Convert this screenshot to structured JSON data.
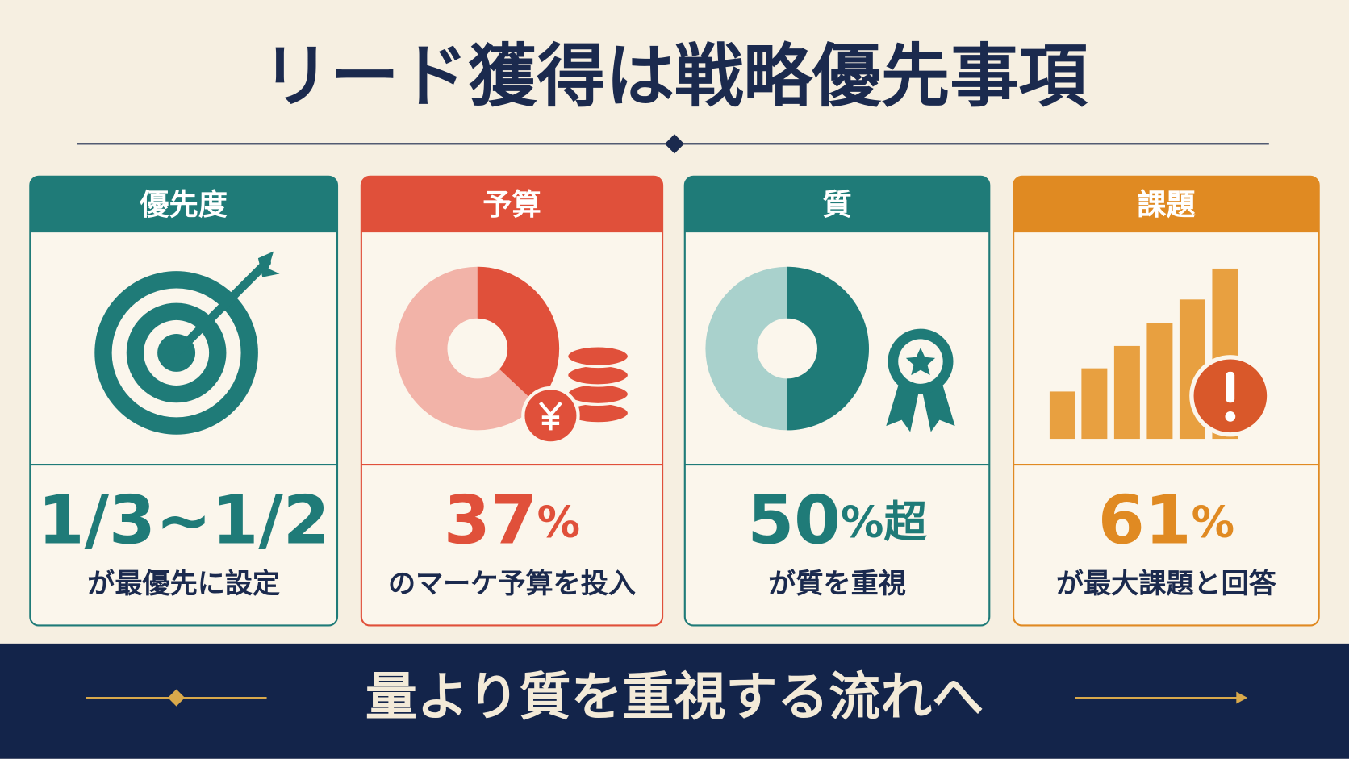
{
  "title": "リード獲得は戦略優先事項",
  "cards": [
    {
      "header": "優先度",
      "value": "1/3~1/2",
      "caption": "が最優先に設定",
      "color": "#1f7b78"
    },
    {
      "header": "予算",
      "value": 37,
      "unit": "%",
      "caption": "のマーケ予算を投入",
      "color": "#e0503a"
    },
    {
      "header": "質",
      "value": 50,
      "unit": "%超",
      "caption": "が質を重視",
      "color": "#1f7b78"
    },
    {
      "header": "課題",
      "value": 61,
      "unit": "%",
      "caption": "が最大課題と回答",
      "color": "#e08a22"
    }
  ],
  "footer": "量より質を重視する流れへ"
}
